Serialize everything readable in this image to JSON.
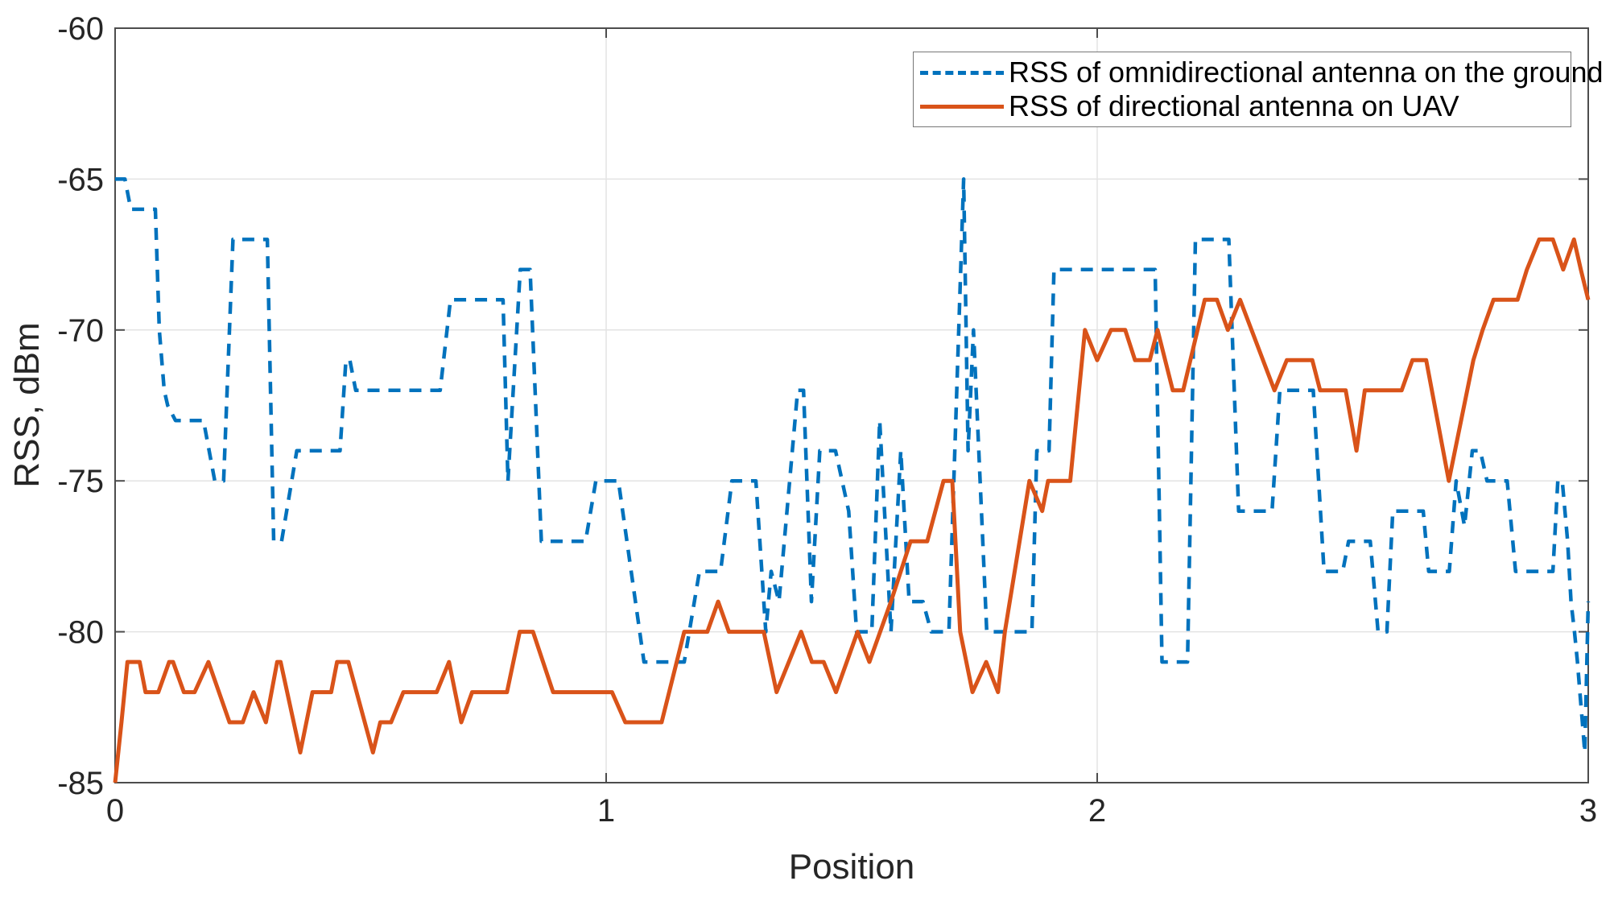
{
  "figure": {
    "background": "#ffffff",
    "plot_area_color": "#ffffff",
    "grid_color": "#e3e3e3",
    "box_color": "#4d4d4d",
    "tick_label_color": "#262626"
  },
  "legend": {
    "position": "top-right",
    "items": [
      {
        "label": "RSS of omnidirectional antenna on the ground",
        "color": "#0072BD",
        "style": "dashed"
      },
      {
        "label": "RSS of directional antenna on UAV",
        "color": "#D95319",
        "style": "solid"
      }
    ]
  },
  "chart_data": {
    "type": "line",
    "title": "",
    "xlabel": "Position",
    "ylabel": "RSS, dBm",
    "xlim": [
      0,
      3
    ],
    "ylim": [
      -85,
      -60
    ],
    "x_tick_labels": [
      "0",
      "1",
      "2",
      "3"
    ],
    "y_tick_labels": [
      "-60",
      "-65",
      "-70",
      "-75",
      "-80",
      "-85"
    ],
    "grid": true,
    "legend_position": "top-right",
    "series": [
      {
        "name": "RSS of omnidirectional antenna on the ground",
        "color": "#0072BD",
        "line_style": "dashed",
        "points": [
          [
            0,
            -65
          ],
          [
            0.02,
            -65
          ],
          [
            0.032,
            -66
          ],
          [
            0.082,
            -66
          ],
          [
            0.09,
            -70
          ],
          [
            0.1,
            -72
          ],
          [
            0.107,
            -72.5
          ],
          [
            0.123,
            -73
          ],
          [
            0.18,
            -73
          ],
          [
            0.203,
            -75
          ],
          [
            0.221,
            -75
          ],
          [
            0.24,
            -67
          ],
          [
            0.31,
            -67
          ],
          [
            0.323,
            -77
          ],
          [
            0.339,
            -77
          ],
          [
            0.37,
            -74
          ],
          [
            0.458,
            -74
          ],
          [
            0.47,
            -71
          ],
          [
            0.478,
            -71
          ],
          [
            0.49,
            -72
          ],
          [
            0.662,
            -72
          ],
          [
            0.683,
            -69
          ],
          [
            0.79,
            -69
          ],
          [
            0.8,
            -75
          ],
          [
            0.825,
            -68
          ],
          [
            0.845,
            -68
          ],
          [
            0.868,
            -77
          ],
          [
            0.958,
            -77
          ],
          [
            0.979,
            -75
          ],
          [
            1.025,
            -75
          ],
          [
            1.077,
            -81
          ],
          [
            1.159,
            -81
          ],
          [
            1.19,
            -78
          ],
          [
            1.233,
            -78
          ],
          [
            1.256,
            -75
          ],
          [
            1.305,
            -75
          ],
          [
            1.325,
            -80
          ],
          [
            1.336,
            -78
          ],
          [
            1.352,
            -79
          ],
          [
            1.39,
            -72
          ],
          [
            1.402,
            -72
          ],
          [
            1.418,
            -79
          ],
          [
            1.435,
            -74
          ],
          [
            1.467,
            -74
          ],
          [
            1.494,
            -76
          ],
          [
            1.51,
            -80
          ],
          [
            1.541,
            -80
          ],
          [
            1.557,
            -73
          ],
          [
            1.58,
            -80
          ],
          [
            1.6,
            -74
          ],
          [
            1.617,
            -79
          ],
          [
            1.645,
            -79
          ],
          [
            1.662,
            -80
          ],
          [
            1.698,
            -80
          ],
          [
            1.728,
            -65
          ],
          [
            1.737,
            -74
          ],
          [
            1.748,
            -70
          ],
          [
            1.775,
            -80
          ],
          [
            1.867,
            -80
          ],
          [
            1.877,
            -74
          ],
          [
            1.902,
            -74
          ],
          [
            1.912,
            -68
          ],
          [
            2.118,
            -68
          ],
          [
            2.132,
            -81
          ],
          [
            2.184,
            -81
          ],
          [
            2.2,
            -67
          ],
          [
            2.268,
            -67
          ],
          [
            2.288,
            -76
          ],
          [
            2.356,
            -76
          ],
          [
            2.372,
            -72
          ],
          [
            2.44,
            -72
          ],
          [
            2.462,
            -78
          ],
          [
            2.5,
            -78
          ],
          [
            2.512,
            -77
          ],
          [
            2.556,
            -77
          ],
          [
            2.572,
            -80
          ],
          [
            2.59,
            -80
          ],
          [
            2.602,
            -76
          ],
          [
            2.664,
            -76
          ],
          [
            2.675,
            -78
          ],
          [
            2.717,
            -78
          ],
          [
            2.731,
            -75
          ],
          [
            2.748,
            -76.5
          ],
          [
            2.764,
            -74
          ],
          [
            2.78,
            -74
          ],
          [
            2.794,
            -75
          ],
          [
            2.835,
            -75
          ],
          [
            2.852,
            -78
          ],
          [
            2.928,
            -78
          ],
          [
            2.938,
            -75
          ],
          [
            2.947,
            -75
          ],
          [
            2.958,
            -77
          ],
          [
            2.965,
            -79
          ],
          [
            2.972,
            -80
          ],
          [
            2.978,
            -81
          ],
          [
            2.983,
            -82
          ],
          [
            2.988,
            -83
          ],
          [
            2.993,
            -84
          ],
          [
            3,
            -79
          ]
        ]
      },
      {
        "name": "RSS of directional antenna on UAV",
        "color": "#D95319",
        "line_style": "solid",
        "points": [
          [
            0,
            -85
          ],
          [
            0.013,
            -83
          ],
          [
            0.025,
            -81
          ],
          [
            0.05,
            -81
          ],
          [
            0.062,
            -82
          ],
          [
            0.088,
            -82
          ],
          [
            0.11,
            -81
          ],
          [
            0.118,
            -81
          ],
          [
            0.14,
            -82
          ],
          [
            0.162,
            -82
          ],
          [
            0.19,
            -81
          ],
          [
            0.233,
            -83
          ],
          [
            0.26,
            -83
          ],
          [
            0.282,
            -82
          ],
          [
            0.307,
            -83
          ],
          [
            0.33,
            -81
          ],
          [
            0.337,
            -81
          ],
          [
            0.377,
            -84
          ],
          [
            0.402,
            -82
          ],
          [
            0.44,
            -82
          ],
          [
            0.452,
            -81
          ],
          [
            0.475,
            -81
          ],
          [
            0.525,
            -84
          ],
          [
            0.54,
            -83
          ],
          [
            0.562,
            -83
          ],
          [
            0.587,
            -82
          ],
          [
            0.655,
            -82
          ],
          [
            0.68,
            -81
          ],
          [
            0.705,
            -83
          ],
          [
            0.727,
            -82
          ],
          [
            0.798,
            -82
          ],
          [
            0.824,
            -80
          ],
          [
            0.851,
            -80
          ],
          [
            0.892,
            -82
          ],
          [
            1.012,
            -82
          ],
          [
            1.039,
            -83
          ],
          [
            1.113,
            -83
          ],
          [
            1.159,
            -80
          ],
          [
            1.206,
            -80
          ],
          [
            1.228,
            -79
          ],
          [
            1.25,
            -80
          ],
          [
            1.321,
            -80
          ],
          [
            1.347,
            -82
          ],
          [
            1.397,
            -80
          ],
          [
            1.419,
            -81
          ],
          [
            1.443,
            -81
          ],
          [
            1.468,
            -82
          ],
          [
            1.512,
            -80
          ],
          [
            1.536,
            -81
          ],
          [
            1.58,
            -79
          ],
          [
            1.62,
            -77
          ],
          [
            1.654,
            -77
          ],
          [
            1.687,
            -75
          ],
          [
            1.705,
            -75
          ],
          [
            1.721,
            -80
          ],
          [
            1.746,
            -82
          ],
          [
            1.774,
            -81
          ],
          [
            1.798,
            -82
          ],
          [
            1.812,
            -80
          ],
          [
            1.862,
            -75
          ],
          [
            1.888,
            -76
          ],
          [
            1.9,
            -75
          ],
          [
            1.945,
            -75
          ],
          [
            1.975,
            -70
          ],
          [
            2,
            -71
          ],
          [
            2.028,
            -70
          ],
          [
            2.057,
            -70
          ],
          [
            2.077,
            -71
          ],
          [
            2.107,
            -71
          ],
          [
            2.123,
            -70
          ],
          [
            2.154,
            -72
          ],
          [
            2.175,
            -72
          ],
          [
            2.219,
            -69
          ],
          [
            2.244,
            -69
          ],
          [
            2.266,
            -70
          ],
          [
            2.291,
            -69
          ],
          [
            2.361,
            -72
          ],
          [
            2.386,
            -71
          ],
          [
            2.438,
            -71
          ],
          [
            2.454,
            -72
          ],
          [
            2.506,
            -72
          ],
          [
            2.528,
            -74
          ],
          [
            2.545,
            -72
          ],
          [
            2.62,
            -72
          ],
          [
            2.642,
            -71
          ],
          [
            2.67,
            -71
          ],
          [
            2.716,
            -75
          ],
          [
            2.766,
            -71
          ],
          [
            2.785,
            -70
          ],
          [
            2.807,
            -69
          ],
          [
            2.856,
            -69
          ],
          [
            2.875,
            -68
          ],
          [
            2.9,
            -67
          ],
          [
            2.928,
            -67
          ],
          [
            2.949,
            -68
          ],
          [
            2.971,
            -67
          ],
          [
            2.985,
            -68
          ],
          [
            3,
            -69
          ]
        ]
      }
    ]
  }
}
